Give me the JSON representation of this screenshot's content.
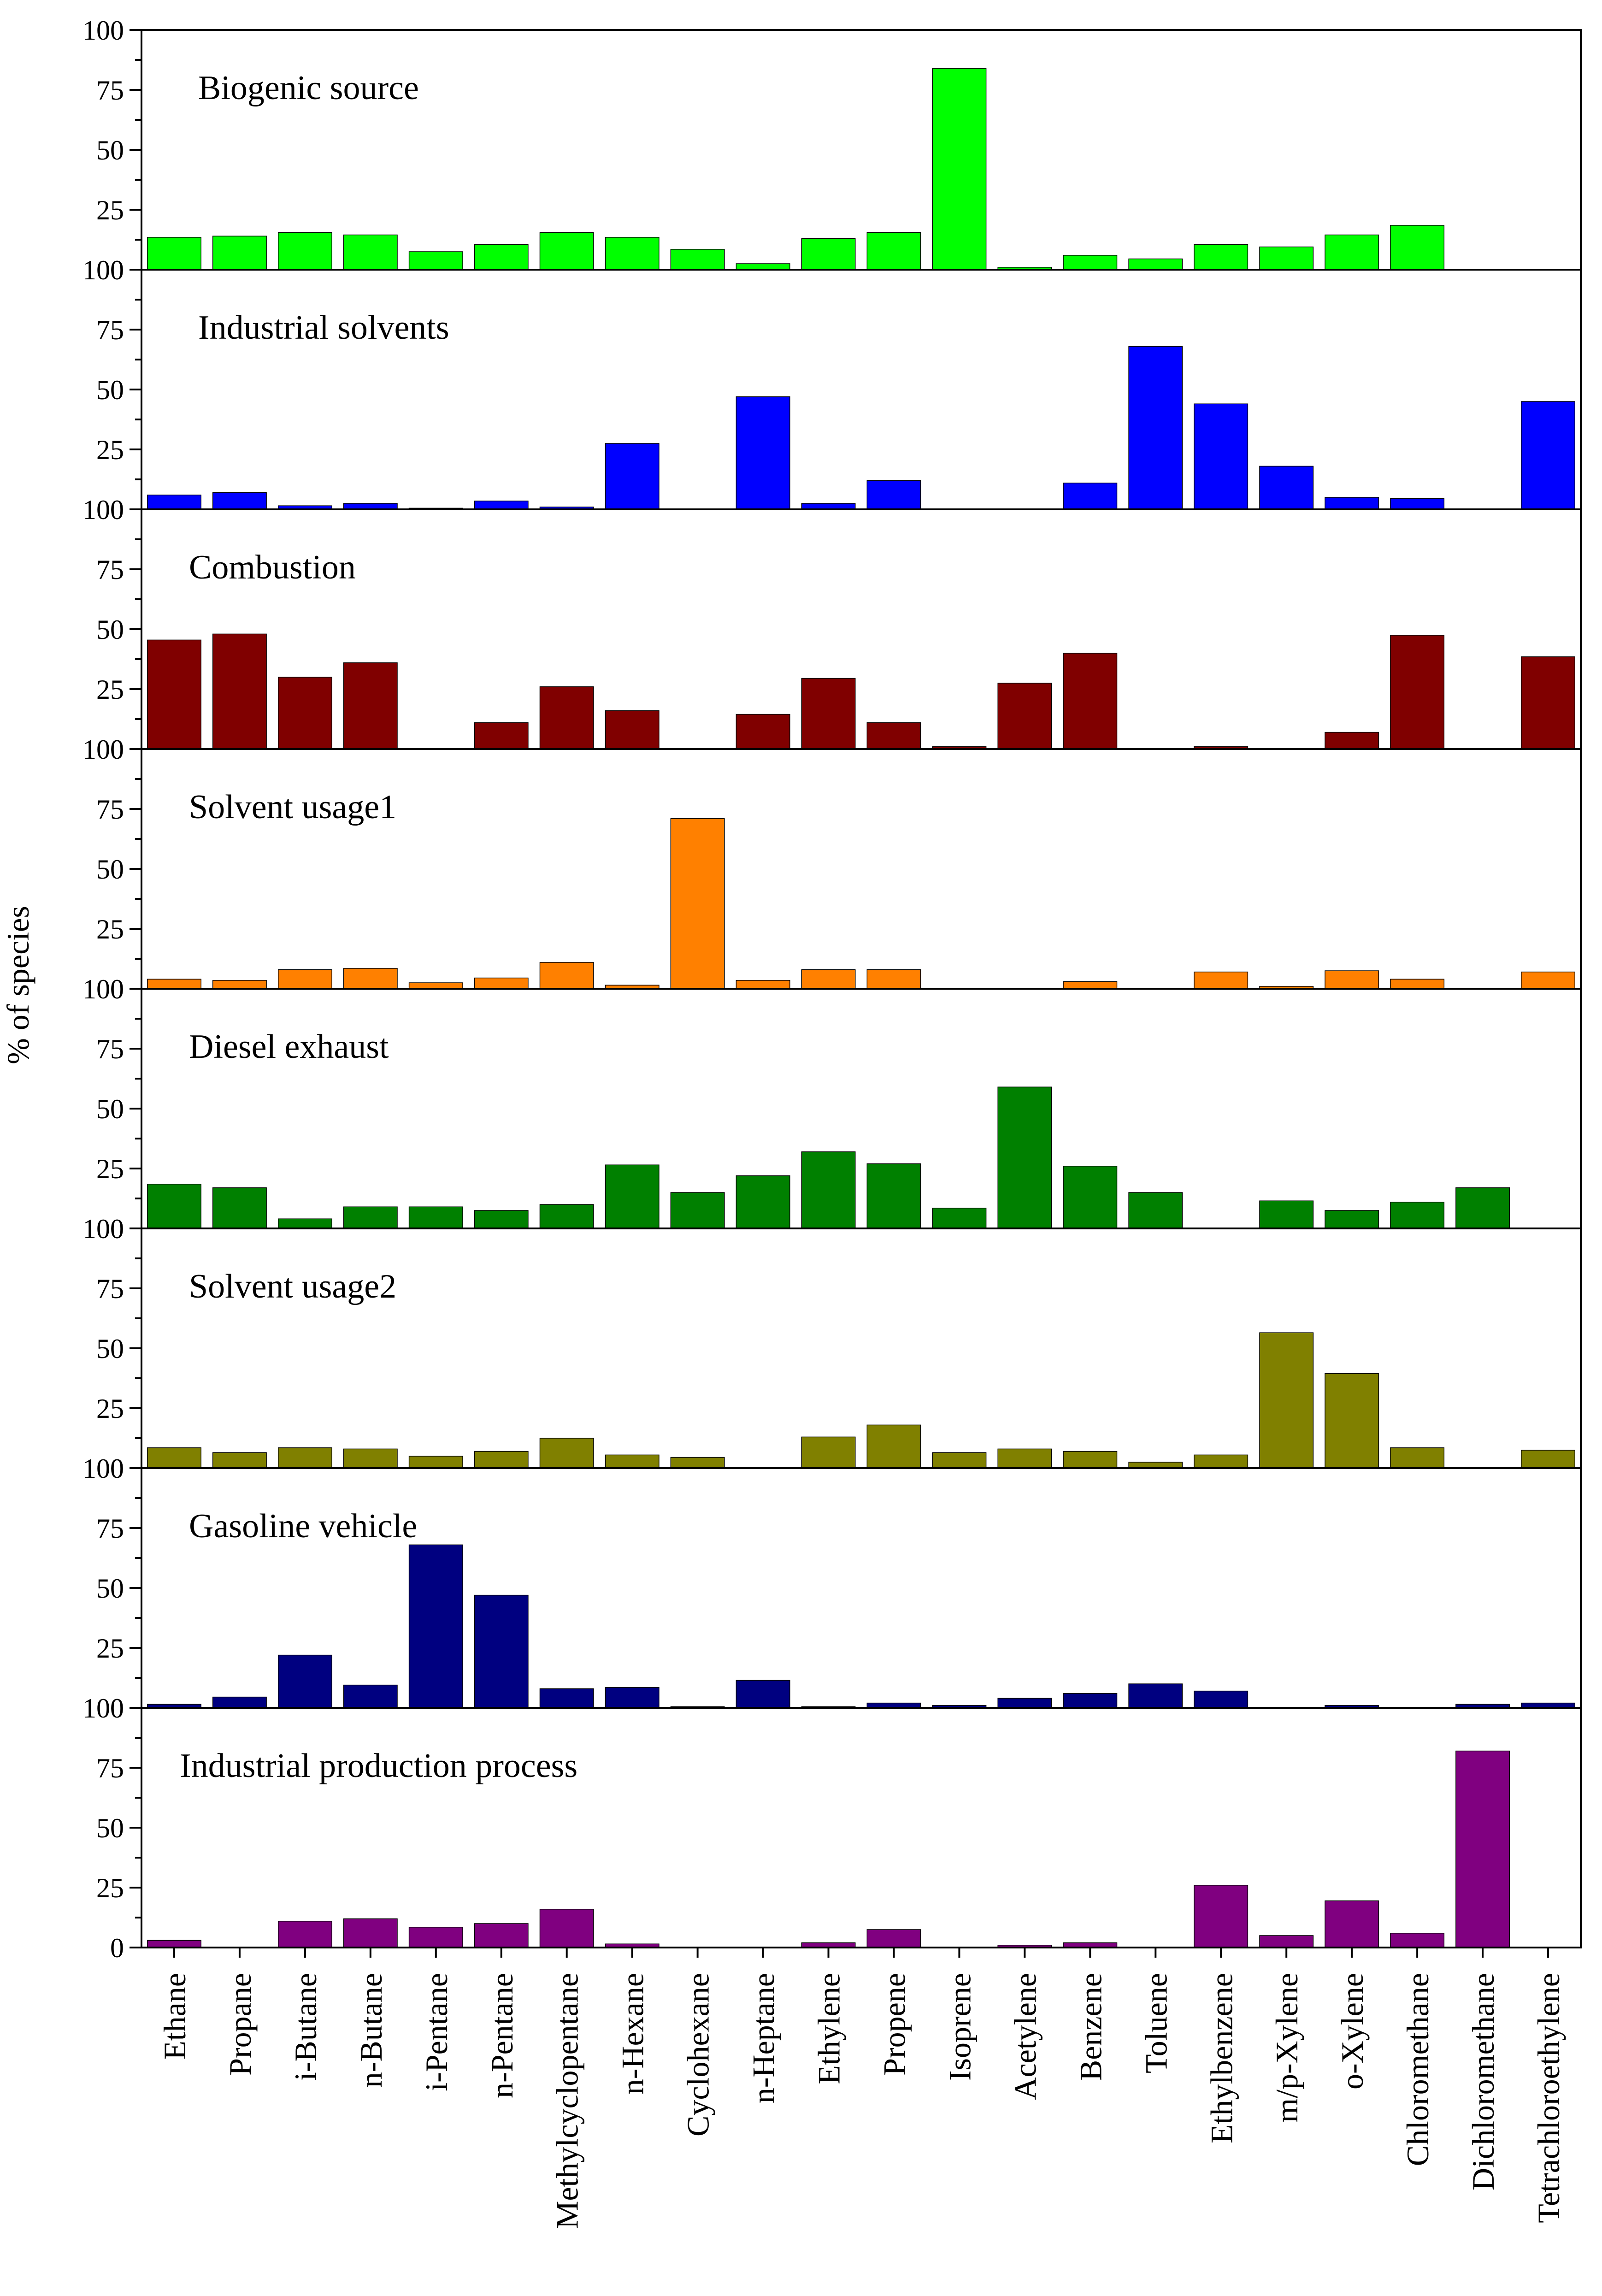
{
  "chart_data": {
    "type": "bar",
    "ylabel": "% of species",
    "ylim": [
      0,
      100
    ],
    "yticks": [
      "0",
      "25",
      "50",
      "75",
      "100"
    ],
    "categories": [
      "Ethane",
      "Propane",
      "i-Butane",
      "n-Butane",
      "i-Pentane",
      "n-Pentane",
      "Methylcyclopentane",
      "n-Hexane",
      "Cyclohexane",
      "n-Heptane",
      "Ethylene",
      "Propene",
      "Isoprene",
      "Acetylene",
      "Benzene",
      "Toluene",
      "Ethylbenzene",
      "m/p-Xylene",
      "o-Xylene",
      "Chloromethane",
      "Dichloromethane",
      "Tetrachloroethylene"
    ],
    "series": [
      {
        "name": "Biogenic source",
        "color": "#00ff00",
        "values": [
          13.5,
          14,
          15.5,
          14.5,
          7.5,
          10.5,
          15.5,
          13.5,
          8.5,
          2.5,
          13,
          15.5,
          84,
          1,
          6,
          4.5,
          10.5,
          9.5,
          14.5,
          18.5,
          0,
          0
        ]
      },
      {
        "name": "Industrial solvents",
        "color": "#0000ff",
        "values": [
          6,
          7,
          1.5,
          2.5,
          0.5,
          3.5,
          1,
          27.5,
          0,
          47,
          2.5,
          12,
          0,
          0,
          11,
          68,
          44,
          18,
          5,
          4.5,
          0,
          45
        ]
      },
      {
        "name": "Combustion",
        "color": "#800000",
        "values": [
          45.5,
          48,
          30,
          36,
          0,
          11,
          26,
          16,
          0,
          14.5,
          29.5,
          11,
          1,
          27.5,
          40,
          0,
          1,
          0,
          7,
          47.5,
          0,
          38.5
        ]
      },
      {
        "name": "Solvent usage1",
        "color": "#ff8000",
        "values": [
          4,
          3.5,
          8,
          8.5,
          2.5,
          4.5,
          11,
          1.5,
          71,
          3.5,
          8,
          8,
          0,
          0,
          3,
          0,
          7,
          1,
          7.5,
          4,
          0,
          7
        ]
      },
      {
        "name": "Diesel exhaust",
        "color": "#008000",
        "values": [
          18.5,
          17,
          4,
          9,
          9,
          7.5,
          10,
          26.5,
          15,
          22,
          32,
          27,
          8.5,
          59,
          26,
          15,
          0,
          11.5,
          7.5,
          11,
          17,
          0
        ]
      },
      {
        "name": "Solvent usage2",
        "color": "#808000",
        "values": [
          8.5,
          6.5,
          8.5,
          8,
          5,
          7,
          12.5,
          5.5,
          4.5,
          0,
          13,
          18,
          6.5,
          8,
          7,
          2.5,
          5.5,
          56.5,
          39.5,
          8.5,
          0,
          7.5
        ]
      },
      {
        "name": "Gasoline vehicle",
        "color": "#000080",
        "values": [
          1.5,
          4.5,
          22,
          9.5,
          68,
          47,
          8,
          8.5,
          0.5,
          11.5,
          0.5,
          2,
          1,
          4,
          6,
          10,
          7,
          0,
          1,
          0,
          1.5,
          2
        ]
      },
      {
        "name": "Industrial production process",
        "color": "#800080",
        "values": [
          3,
          0,
          11,
          12,
          8.5,
          10,
          16,
          1.5,
          0,
          0,
          2,
          7.5,
          0,
          1,
          2,
          0,
          26,
          5,
          19.5,
          6,
          82,
          0
        ]
      }
    ]
  }
}
